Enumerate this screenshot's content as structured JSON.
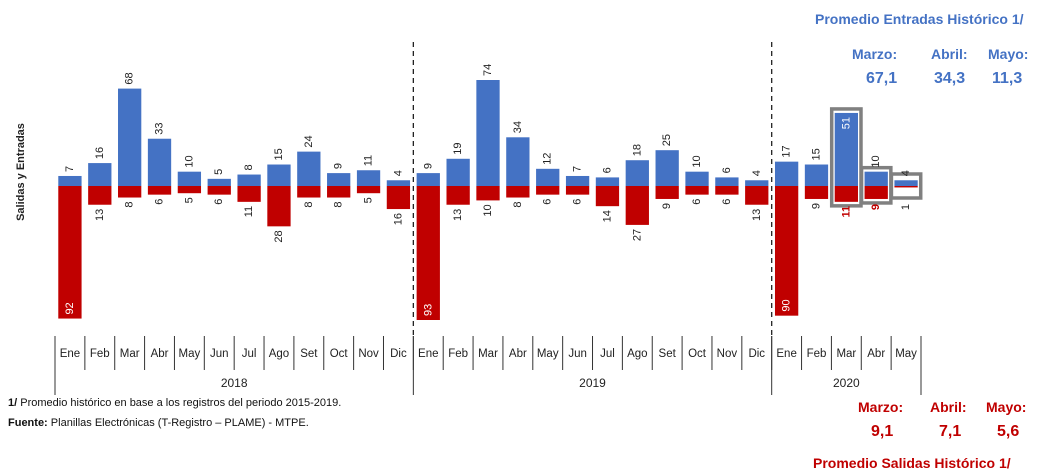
{
  "chart_data": {
    "type": "bar",
    "ylabel": "Salidas  y  Entradas",
    "years": [
      {
        "label": "2018",
        "months": 12
      },
      {
        "label": "2019",
        "months": 12
      },
      {
        "label": "2020",
        "months": 5
      }
    ],
    "categories": [
      "Ene",
      "Feb",
      "Mar",
      "Abr",
      "May",
      "Jun",
      "Jul",
      "Ago",
      "Set",
      "Oct",
      "Nov",
      "Dic",
      "Ene",
      "Feb",
      "Mar",
      "Abr",
      "May",
      "Jun",
      "Jul",
      "Ago",
      "Set",
      "Oct",
      "Nov",
      "Dic",
      "Ene",
      "Feb",
      "Mar",
      "Abr",
      "May"
    ],
    "series": [
      {
        "name": "Entradas",
        "color": "#4472c4",
        "values": [
          7,
          16,
          68,
          33,
          10,
          5,
          8,
          15,
          24,
          9,
          11,
          4,
          9,
          19,
          74,
          34,
          12,
          7,
          6,
          18,
          25,
          10,
          6,
          4,
          17,
          15,
          51,
          10,
          4
        ]
      },
      {
        "name": "Salidas",
        "color": "#c00000",
        "values": [
          92,
          13,
          8,
          6,
          5,
          6,
          11,
          28,
          8,
          8,
          5,
          16,
          93,
          13,
          10,
          8,
          6,
          6,
          14,
          27,
          9,
          6,
          6,
          13,
          90,
          9,
          11,
          9,
          1
        ]
      }
    ],
    "highlighted_indices": [
      26,
      27,
      28
    ]
  },
  "averages": {
    "entradas": {
      "title": "Promedio Entradas Histórico 1/",
      "items": [
        {
          "month": "Marzo:",
          "value": "67,1"
        },
        {
          "month": "Abril:",
          "value": "34,3"
        },
        {
          "month": "Mayo:",
          "value": "11,3"
        }
      ]
    },
    "salidas": {
      "title": "Promedio Salidas Histórico 1/",
      "items": [
        {
          "month": "Marzo:",
          "value": "9,1"
        },
        {
          "month": "Abril:",
          "value": "7,1"
        },
        {
          "month": "Mayo:",
          "value": "5,6"
        }
      ]
    }
  },
  "notes": {
    "note1_mark": "1/",
    "note1_text": "Promedio histórico en base a los registros del periodo 2015-2019.",
    "source_label": "Fuente:",
    "source_text": "Planillas Electrónicas (T-Registro – PLAME) - MTPE."
  }
}
